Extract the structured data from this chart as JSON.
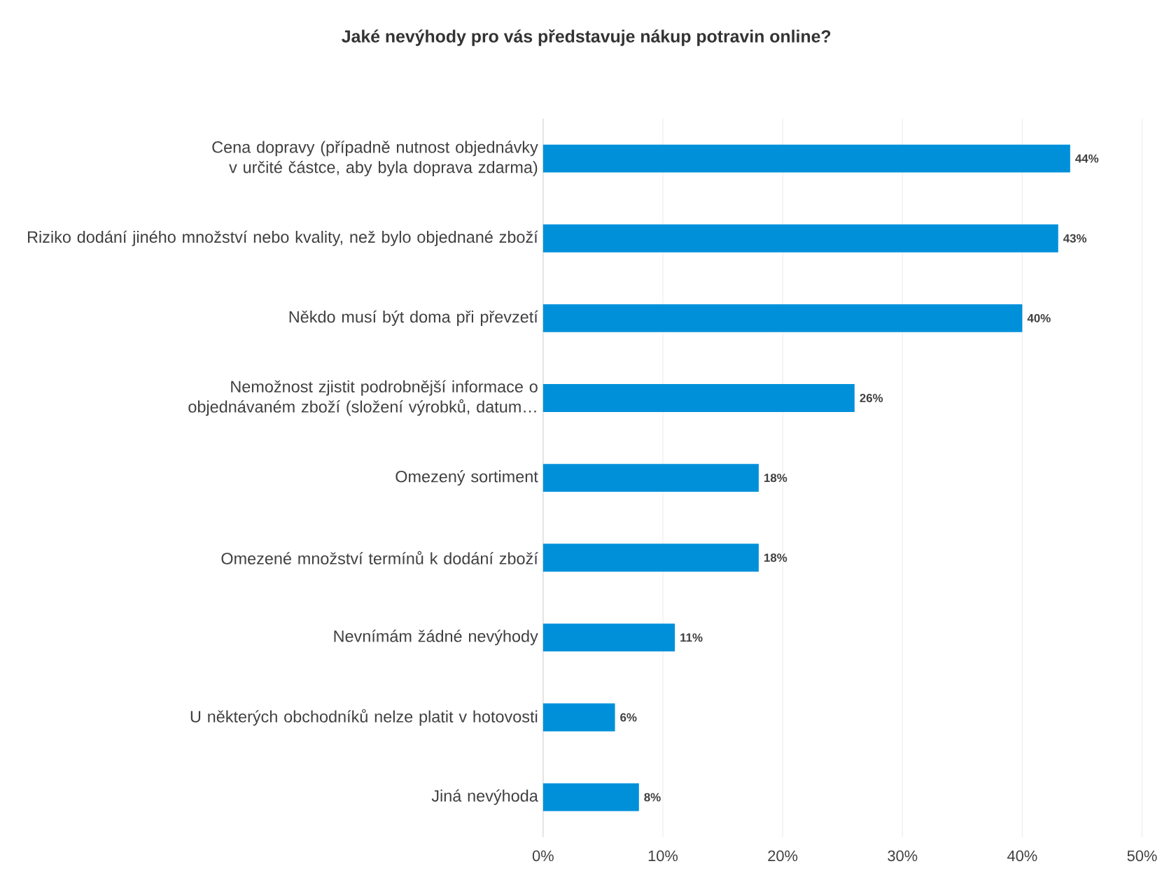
{
  "chart_data": {
    "type": "bar",
    "orientation": "horizontal",
    "title": "Jaké nevýhody pro vás představuje nákup potravin online?",
    "categories": [
      "Cena dopravy (případně nutnost objednávky v určité částce, aby byla doprava zdarma)",
      "Riziko dodání jiného množství nebo kvality, než bylo objednané zboží",
      "Někdo musí být doma při převzetí",
      "Nemožnost zjistit podrobnější informace o objednávaném zboží (složení výrobků, datum…",
      "Omezený sortiment",
      "Omezené množství termínů k dodání zboží",
      "Nevnímám žádné nevýhody",
      "U některých obchodníků nelze platit v hotovosti",
      "Jiná nevýhoda"
    ],
    "values": [
      44,
      43,
      40,
      26,
      18,
      18,
      11,
      6,
      8
    ],
    "value_labels": [
      "44%",
      "43%",
      "40%",
      "26%",
      "18%",
      "18%",
      "11%",
      "6%",
      "8%"
    ],
    "color": "#0090da",
    "xlim": [
      0,
      50
    ],
    "xticks": [
      {
        "value": 0,
        "label": "0%"
      },
      {
        "value": 10,
        "label": "10%"
      },
      {
        "value": 20,
        "label": "20%"
      },
      {
        "value": 30,
        "label": "30%"
      },
      {
        "value": 40,
        "label": "40%"
      },
      {
        "value": 50,
        "label": "50%"
      }
    ],
    "grid": "x"
  }
}
